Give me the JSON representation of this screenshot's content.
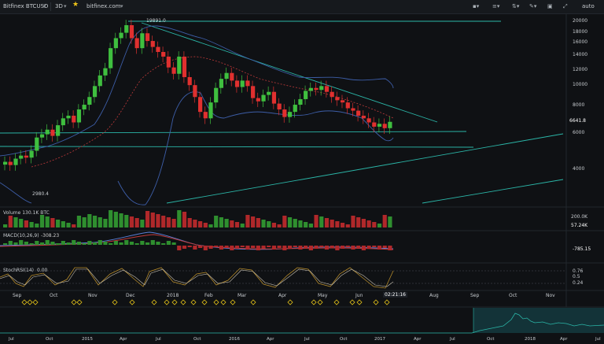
{
  "toolbar": {
    "symbol": "Bitfinex BTCUSD",
    "timeframe": "3D",
    "site": "bitfinex.com",
    "auto": "auto"
  },
  "chart": {
    "high_label": "19891.0",
    "low_label": "2980.4",
    "last_price": "6641.8",
    "price_axis": [
      "20000",
      "18000",
      "16000",
      "14000",
      "12000",
      "10000",
      "8000",
      "6000",
      "4000"
    ],
    "volume_label": "Volume 130.1K BTC",
    "volume_axis": [
      "200.0K",
      "57.24K"
    ],
    "macd_label": "MACD(10,26,9)",
    "macd_value": "-308.23",
    "macd_axis": "-785.15",
    "stoch_label": "StochRSI(14)",
    "stoch_value": "0.00",
    "stoch_axis": [
      "0.76",
      "0.5",
      "0.24"
    ],
    "countdown": "02:21:16",
    "time_axis": [
      "Sep",
      "Oct",
      "Nov",
      "Dec",
      "2018",
      "Feb",
      "Mar",
      "Apr",
      "May",
      "Jun",
      "Aug",
      "Sep",
      "Oct",
      "Nov"
    ],
    "nav_axis": [
      "Jul",
      "Oct",
      "2015",
      "Apr",
      "Jul",
      "Oct",
      "2016",
      "Apr",
      "Jul",
      "Oct",
      "2017",
      "Apr",
      "Jul",
      "Oct",
      "2018",
      "Apr",
      "Jul"
    ]
  },
  "colors": {
    "up": "#3fbf3f",
    "down": "#e0302f",
    "trend": "#2bb6a8",
    "band": "#3d5ea8",
    "ma": "#c03a3a"
  },
  "chart_data": {
    "type": "candlestick",
    "ohlc_close": [
      4300,
      4150,
      4450,
      4600,
      4500,
      4850,
      5600,
      5800,
      6100,
      5700,
      6400,
      6900,
      7100,
      6600,
      7600,
      8000,
      8700,
      9800,
      11000,
      11900,
      14800,
      16500,
      17500,
      19000,
      16500,
      14800,
      17400,
      16000,
      15000,
      14200,
      13500,
      12000,
      11200,
      13500,
      10800,
      9900,
      8700,
      7400,
      6900,
      8200,
      9600,
      10600,
      11300,
      10400,
      9700,
      10400,
      9800,
      8600,
      8300,
      8900,
      9200,
      8100,
      7600,
      7000,
      7400,
      8000,
      8500,
      9300,
      9600,
      9400,
      9800,
      9200,
      8700,
      8400,
      8200,
      7700,
      7500,
      7100,
      6900,
      6600,
      6300,
      6500,
      6200,
      6641.8
    ],
    "volume_label": "Volume 130.1K BTC"
  }
}
